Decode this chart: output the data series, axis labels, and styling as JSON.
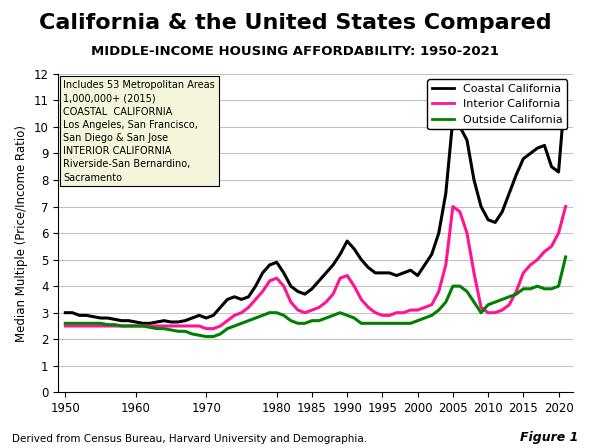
{
  "title": "California & the United States Compared",
  "subtitle": "MIDDLE-INCOME HOUSING AFFORDABILITY: 1950-2021",
  "ylabel": "Median Multiple (Price/Income Ratio)",
  "xlabel_caption": "Derived from Census Bureau, Harvard University and Demographia.",
  "figure_label": "Figure 1",
  "annotation_text": "Includes 53 Metropolitan Areas\n1,000,000+ (2015)\nCOASTAL  CALIFORNIA\nLos Angeles, San Francisco,\nSan Diego & San Jose\nINTERIOR CALIFORNIA\nRiverside-San Bernardino,\nSacramento",
  "ylim": [
    0,
    12
  ],
  "yticks": [
    0,
    1,
    2,
    3,
    4,
    5,
    6,
    7,
    8,
    9,
    10,
    11,
    12
  ],
  "xticks": [
    1950,
    1960,
    1970,
    1980,
    1985,
    1990,
    1995,
    2000,
    2005,
    2010,
    2015,
    2020
  ],
  "coastal_color": "#000000",
  "interior_color": "#FF1493",
  "outside_color": "#008000",
  "coastal": {
    "years": [
      1950,
      1951,
      1952,
      1953,
      1954,
      1955,
      1956,
      1957,
      1958,
      1959,
      1960,
      1961,
      1962,
      1963,
      1964,
      1965,
      1966,
      1967,
      1968,
      1969,
      1970,
      1971,
      1972,
      1973,
      1974,
      1975,
      1976,
      1977,
      1978,
      1979,
      1980,
      1981,
      1982,
      1983,
      1984,
      1985,
      1986,
      1987,
      1988,
      1989,
      1990,
      1991,
      1992,
      1993,
      1994,
      1995,
      1996,
      1997,
      1998,
      1999,
      2000,
      2001,
      2002,
      2003,
      2004,
      2005,
      2006,
      2007,
      2008,
      2009,
      2010,
      2011,
      2012,
      2013,
      2014,
      2015,
      2016,
      2017,
      2018,
      2019,
      2020,
      2021
    ],
    "values": [
      3.0,
      3.0,
      2.9,
      2.9,
      2.85,
      2.8,
      2.8,
      2.75,
      2.7,
      2.7,
      2.65,
      2.6,
      2.6,
      2.65,
      2.7,
      2.65,
      2.65,
      2.7,
      2.8,
      2.9,
      2.8,
      2.9,
      3.2,
      3.5,
      3.6,
      3.5,
      3.6,
      4.0,
      4.5,
      4.8,
      4.9,
      4.5,
      4.0,
      3.8,
      3.7,
      3.9,
      4.2,
      4.5,
      4.8,
      5.2,
      5.7,
      5.4,
      5.0,
      4.7,
      4.5,
      4.5,
      4.5,
      4.4,
      4.5,
      4.6,
      4.4,
      4.8,
      5.2,
      6.0,
      7.5,
      10.3,
      10.0,
      9.5,
      8.0,
      7.0,
      6.5,
      6.4,
      6.8,
      7.5,
      8.2,
      8.8,
      9.0,
      9.2,
      9.3,
      8.5,
      8.3,
      11.5
    ]
  },
  "interior": {
    "years": [
      1950,
      1951,
      1952,
      1953,
      1954,
      1955,
      1956,
      1957,
      1958,
      1959,
      1960,
      1961,
      1962,
      1963,
      1964,
      1965,
      1966,
      1967,
      1968,
      1969,
      1970,
      1971,
      1972,
      1973,
      1974,
      1975,
      1976,
      1977,
      1978,
      1979,
      1980,
      1981,
      1982,
      1983,
      1984,
      1985,
      1986,
      1987,
      1988,
      1989,
      1990,
      1991,
      1992,
      1993,
      1994,
      1995,
      1996,
      1997,
      1998,
      1999,
      2000,
      2001,
      2002,
      2003,
      2004,
      2005,
      2006,
      2007,
      2008,
      2009,
      2010,
      2011,
      2012,
      2013,
      2014,
      2015,
      2016,
      2017,
      2018,
      2019,
      2020,
      2021
    ],
    "values": [
      2.5,
      2.5,
      2.5,
      2.5,
      2.5,
      2.5,
      2.5,
      2.5,
      2.5,
      2.5,
      2.5,
      2.5,
      2.5,
      2.5,
      2.5,
      2.5,
      2.5,
      2.5,
      2.5,
      2.5,
      2.4,
      2.4,
      2.5,
      2.7,
      2.9,
      3.0,
      3.2,
      3.5,
      3.8,
      4.2,
      4.3,
      4.0,
      3.4,
      3.1,
      3.0,
      3.1,
      3.2,
      3.4,
      3.7,
      4.3,
      4.4,
      4.0,
      3.5,
      3.2,
      3.0,
      2.9,
      2.9,
      3.0,
      3.0,
      3.1,
      3.1,
      3.2,
      3.3,
      3.8,
      4.8,
      7.0,
      6.8,
      6.0,
      4.5,
      3.2,
      3.0,
      3.0,
      3.1,
      3.3,
      3.8,
      4.5,
      4.8,
      5.0,
      5.3,
      5.5,
      6.0,
      7.0
    ]
  },
  "outside": {
    "years": [
      1950,
      1951,
      1952,
      1953,
      1954,
      1955,
      1956,
      1957,
      1958,
      1959,
      1960,
      1961,
      1962,
      1963,
      1964,
      1965,
      1966,
      1967,
      1968,
      1969,
      1970,
      1971,
      1972,
      1973,
      1974,
      1975,
      1976,
      1977,
      1978,
      1979,
      1980,
      1981,
      1982,
      1983,
      1984,
      1985,
      1986,
      1987,
      1988,
      1989,
      1990,
      1991,
      1992,
      1993,
      1994,
      1995,
      1996,
      1997,
      1998,
      1999,
      2000,
      2001,
      2002,
      2003,
      2004,
      2005,
      2006,
      2007,
      2008,
      2009,
      2010,
      2011,
      2012,
      2013,
      2014,
      2015,
      2016,
      2017,
      2018,
      2019,
      2020,
      2021
    ],
    "values": [
      2.6,
      2.6,
      2.6,
      2.6,
      2.6,
      2.6,
      2.55,
      2.55,
      2.5,
      2.5,
      2.5,
      2.5,
      2.45,
      2.4,
      2.4,
      2.35,
      2.3,
      2.3,
      2.2,
      2.15,
      2.1,
      2.1,
      2.2,
      2.4,
      2.5,
      2.6,
      2.7,
      2.8,
      2.9,
      3.0,
      3.0,
      2.9,
      2.7,
      2.6,
      2.6,
      2.7,
      2.7,
      2.8,
      2.9,
      3.0,
      2.9,
      2.8,
      2.6,
      2.6,
      2.6,
      2.6,
      2.6,
      2.6,
      2.6,
      2.6,
      2.7,
      2.8,
      2.9,
      3.1,
      3.4,
      4.0,
      4.0,
      3.8,
      3.4,
      3.0,
      3.3,
      3.4,
      3.5,
      3.6,
      3.7,
      3.9,
      3.9,
      4.0,
      3.9,
      3.9,
      4.0,
      5.1
    ]
  }
}
